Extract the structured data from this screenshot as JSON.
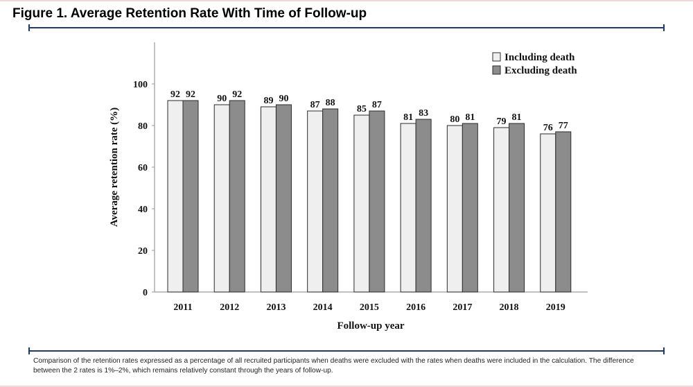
{
  "figure": {
    "title": "Figure 1. Average Retention Rate With Time of Follow-up",
    "caption": "Comparison of the retention rates expressed as a percentage of all recruited participants when deaths were excluded with the rates when deaths were included in the calculation. The difference between the 2 rates is 1%–2%, which remains relatively constant through the years of follow-up."
  },
  "chart_data": {
    "type": "bar",
    "title": "",
    "xlabel": "Follow-up year",
    "ylabel": "Average retention rate (%)",
    "ylim": [
      0,
      120
    ],
    "yticks": [
      0,
      20,
      40,
      60,
      80,
      100
    ],
    "grid": false,
    "legend_position": "top-right",
    "categories": [
      "2011",
      "2012",
      "2013",
      "2014",
      "2015",
      "2016",
      "2017",
      "2018",
      "2019"
    ],
    "series": [
      {
        "name": "Including death",
        "color": "#efefef",
        "values": [
          92,
          90,
          89,
          87,
          85,
          81,
          80,
          79,
          76
        ]
      },
      {
        "name": "Excluding death",
        "color": "#8c8c8c",
        "values": [
          92,
          92,
          90,
          88,
          87,
          83,
          81,
          81,
          77
        ]
      }
    ]
  }
}
